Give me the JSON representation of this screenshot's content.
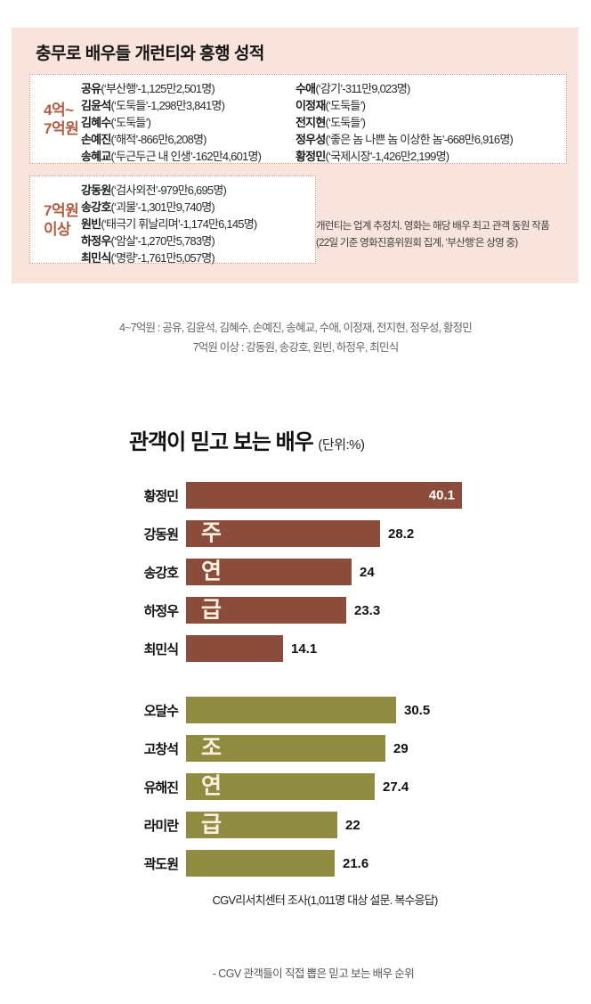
{
  "colors": {
    "infobox_bg": "#f9e4dd",
    "infobox_border": "#e0997f",
    "tier_label": "#b05c41",
    "lead_bar": "#8c4c3b",
    "support_bar": "#8f8c42"
  },
  "infobox": {
    "title": "충무로 배우들 개런티와 흥행 성적",
    "footnote_line1": "개런티는 업계 추정치. 영화는 해당 배우 최고 관객 동원 작품",
    "footnote_line2": "(22일 기준 영화진흥위원회 집계, ‘부산행’은 상영 중)",
    "groups": [
      {
        "label_line1": "4억~",
        "label_line2": "7억원",
        "left_items": [
          {
            "name": "공유",
            "detail": "(‘부산행’-1,125만2,501명)"
          },
          {
            "name": "김윤석",
            "detail": "(‘도둑들’-1,298만3,841명)"
          },
          {
            "name": "김혜수",
            "detail": "(‘도둑들’)"
          },
          {
            "name": "손예진",
            "detail": "(‘해적’-866만6,208명)"
          },
          {
            "name": "송혜교",
            "detail": "(‘두근두근 내 인생’-162만4,601명)"
          }
        ],
        "right_items": [
          {
            "name": "수애",
            "detail": "(‘감기’-311만9,023명)"
          },
          {
            "name": "이정재",
            "detail": "(‘도둑들’)"
          },
          {
            "name": "전지현",
            "detail": "(‘도둑들’)"
          },
          {
            "name": "정우성",
            "detail": "(‘좋은 놈 나쁜 놈 이상한 놈’-668만6,916명)"
          },
          {
            "name": "황정민",
            "detail": "(‘국제시장’-1,426만2,199명)"
          }
        ]
      },
      {
        "label_line1": "7억원",
        "label_line2": "이상",
        "items": [
          {
            "name": "강동원",
            "detail": "(‘검사외전’-979만6,695명)"
          },
          {
            "name": "송강호",
            "detail": "(‘괴물’-1,301만9,740명)"
          },
          {
            "name": "원빈",
            "detail": "(‘태극기 휘날리며’-1,174만6,145명)"
          },
          {
            "name": "하정우",
            "detail": "(‘암살’-1,270만5,783명)"
          },
          {
            "name": "최민식",
            "detail": "(‘명량’-1,761만5,057명)"
          }
        ]
      }
    ]
  },
  "midnote": {
    "line1": "4~7억원 : 공유, 김윤석, 김혜수, 손예진, 송혜교, 수애, 이정재, 전지현, 정우성, 황정민",
    "line2": "7억원 이상 : 강동원, 송강호, 원빈, 하정우, 최민식"
  },
  "chart_data": {
    "type": "bar",
    "orientation": "horizontal",
    "title": "관객이 믿고 보는 배우",
    "unit_label": "(단위:%)",
    "xlim": [
      0,
      42
    ],
    "legend_position": "none",
    "grid": false,
    "series": [
      {
        "name": "주연급",
        "color": "#8c4c3b",
        "overlay_chars": [
          "주",
          "연",
          "급"
        ],
        "categories": [
          "황정민",
          "강동원",
          "송강호",
          "하정우",
          "최민식"
        ],
        "values": [
          40.1,
          28.2,
          24,
          23.3,
          14.1
        ],
        "display_values": [
          "40.1",
          "28.2",
          "24",
          "23.3",
          "14.1"
        ]
      },
      {
        "name": "조연급",
        "color": "#8f8c42",
        "overlay_chars": [
          "조",
          "연",
          "급"
        ],
        "categories": [
          "오달수",
          "고창석",
          "유해진",
          "라미란",
          "곽도원"
        ],
        "values": [
          30.5,
          29,
          27.4,
          22,
          21.6
        ],
        "display_values": [
          "30.5",
          "29",
          "27.4",
          "22",
          "21.6"
        ]
      }
    ],
    "source": "CGV리서치센터 조사(1,011명 대상 설문. 복수응답)"
  },
  "bottom_note": "- CGV 관객들이 직접 뽑은 믿고 보는 배우 순위"
}
